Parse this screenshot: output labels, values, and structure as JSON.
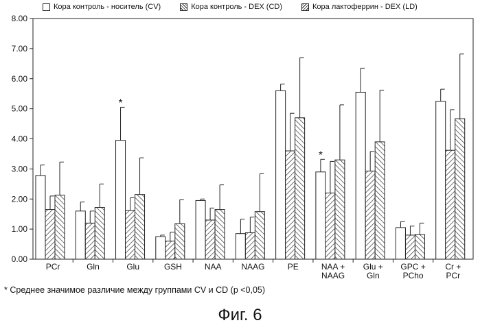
{
  "chart_data": {
    "type": "bar",
    "categories": [
      [
        "PCr"
      ],
      [
        "Gln"
      ],
      [
        "Glu"
      ],
      [
        "GSH"
      ],
      [
        "NAA"
      ],
      [
        "NAAG"
      ],
      [
        "PE"
      ],
      [
        "NAA +",
        "NAAG"
      ],
      [
        "Glu +",
        "Gln"
      ],
      [
        "GPC +",
        "PCho"
      ],
      [
        "Cr +",
        "PCr"
      ]
    ],
    "series": [
      {
        "name": "Кора контроль - носитель (CV)",
        "values": [
          2.78,
          1.6,
          3.95,
          0.75,
          1.95,
          0.85,
          5.6,
          2.9,
          5.55,
          1.05,
          5.25
        ],
        "errors": [
          0.35,
          0.3,
          1.1,
          0.05,
          0.05,
          0.48,
          0.22,
          0.42,
          0.8,
          0.2,
          0.4
        ]
      },
      {
        "name": "Кора контроль - DEX (CD)",
        "values": [
          1.65,
          1.2,
          1.62,
          0.6,
          1.3,
          0.88,
          3.6,
          2.2,
          2.93,
          0.8,
          3.62
        ],
        "errors": [
          0.45,
          0.4,
          0.42,
          0.3,
          0.4,
          0.52,
          1.25,
          1.05,
          0.65,
          0.3,
          1.35
        ]
      },
      {
        "name": "Кора лактоферрин - DEX (LD)",
        "values": [
          2.13,
          1.72,
          2.15,
          1.18,
          1.65,
          1.58,
          4.7,
          3.3,
          3.9,
          0.82,
          4.67
        ],
        "errors": [
          1.1,
          0.78,
          1.22,
          0.8,
          0.82,
          1.26,
          2.0,
          1.83,
          1.72,
          0.38,
          2.15
        ]
      }
    ],
    "ylim": [
      0,
      8
    ],
    "yticks": [
      "0.00",
      "1.00",
      "2.00",
      "3.00",
      "4.00",
      "5.00",
      "6.00",
      "7.00",
      "8.00"
    ],
    "significance_marker": "*",
    "significant_categories": [
      "Glu",
      "NAA + NAAG"
    ],
    "grid": false,
    "legend_position": "top"
  },
  "footnote": "* Среднее значимое различие между группами CV и CD (p <0,05)",
  "figure_label": "Фиг. 6"
}
